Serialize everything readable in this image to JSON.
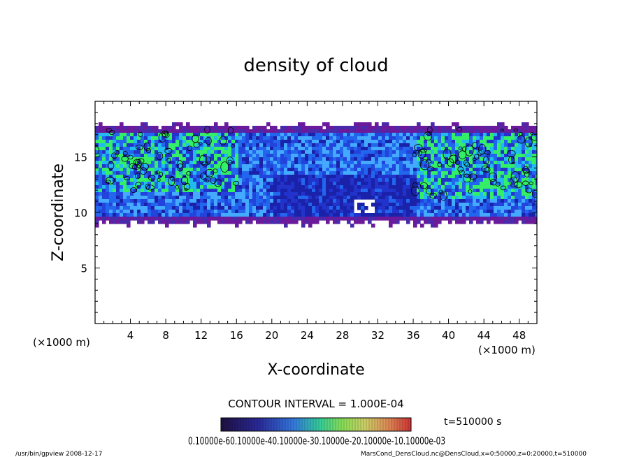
{
  "chart_data": {
    "type": "heatmap",
    "title": "density of cloud",
    "xlabel": "X-coordinate",
    "ylabel": "Z-coordinate",
    "x_unit": "(×1000 m)",
    "y_unit": "(×1000 m)",
    "xlim": [
      0,
      50
    ],
    "ylim": [
      0,
      20
    ],
    "x_ticks": [
      4,
      8,
      12,
      16,
      20,
      24,
      28,
      32,
      36,
      40,
      44,
      48
    ],
    "y_ticks": [
      5,
      10,
      15
    ],
    "cloud_layer": {
      "z_bottom": 9.2,
      "z_top": 18.0
    },
    "high_density_regions": [
      {
        "x_range": [
          0,
          16
        ],
        "z_range": [
          12,
          17.5
        ]
      },
      {
        "x_range": [
          36,
          50
        ],
        "z_range": [
          11.5,
          17.5
        ]
      }
    ],
    "clear_gap": {
      "x_range": [
        29,
        31.5
      ],
      "z_range": [
        10,
        11.5
      ]
    },
    "contour_interval": "CONTOUR INTERVAL = 1.000E-04",
    "time_label": "t=510000 s",
    "colorbar": {
      "labels_text": "0.10000e-60.10000e-40.10000e-30.10000e-20.10000e-10.10000e-03",
      "colors": [
        "#2a1a5e",
        "#3344cc",
        "#33aaee",
        "#44ee66",
        "#dddd44",
        "#ee7733",
        "#cc2222"
      ]
    },
    "footer_left": "/usr/bin/gpview   2008-12-17",
    "footer_right": "MarsCond_DensCloud.nc@DensCloud,x=0:50000,z=0:20000,t=510000"
  }
}
